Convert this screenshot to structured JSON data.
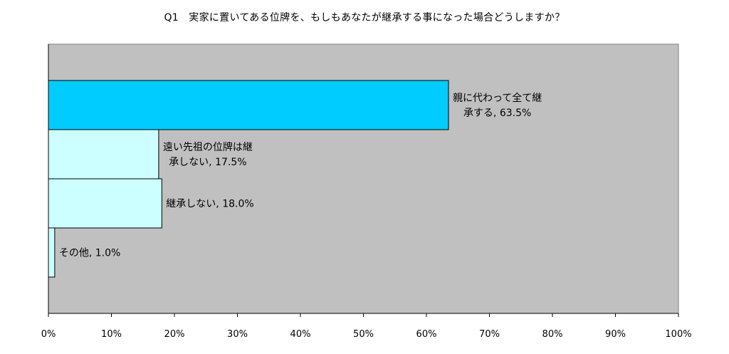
{
  "chart_data": {
    "type": "bar",
    "orientation": "horizontal",
    "title": "Q1　実家に置いてある位牌を、もしもあなたが継承する事になった場合どうしますか？",
    "categories": [
      [
        "親に代わって全て継",
        "承する, 63.5%"
      ],
      [
        "遠い先祖の位牌は継",
        "承しない, 17.5%"
      ],
      [
        "継承しない, 18.0%"
      ],
      [
        "その他, 1.0%"
      ]
    ],
    "values": [
      63.5,
      17.5,
      18.0,
      1.0
    ],
    "bar_colors": [
      "#00ccff",
      "#ccffff",
      "#ccffff",
      "#ccffff"
    ],
    "xlim": [
      0,
      100
    ],
    "xticks": [
      "0%",
      "10%",
      "20%",
      "30%",
      "40%",
      "50%",
      "60%",
      "70%",
      "80%",
      "90%",
      "100%"
    ],
    "grid": false,
    "plot_background": "#c0c0c0"
  }
}
